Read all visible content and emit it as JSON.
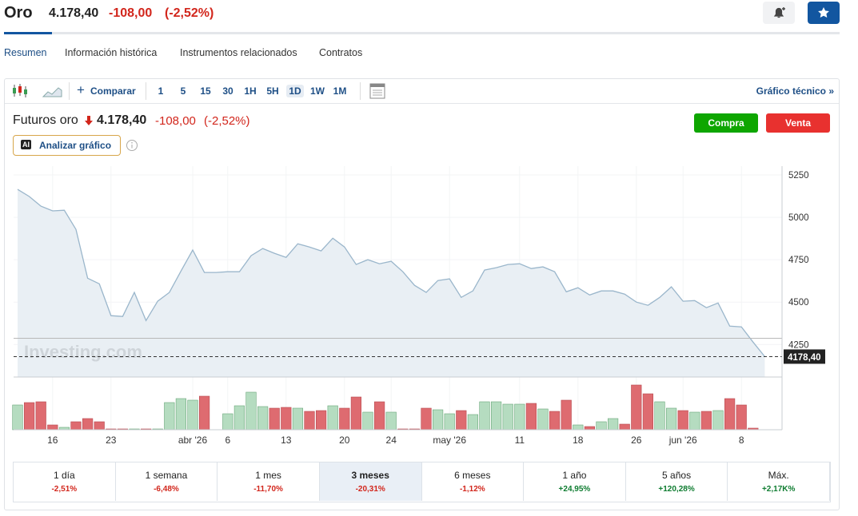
{
  "header": {
    "title": "Oro",
    "price": "4.178,40",
    "change": "-108,00",
    "change_pct": "(-2,52%)"
  },
  "tabs": {
    "items": [
      "Resumen",
      "Información histórica",
      "Instrumentos relacionados",
      "Contratos"
    ],
    "selected": 0
  },
  "toolbar": {
    "compare": "Comparar",
    "intervals": [
      "1",
      "5",
      "15",
      "30",
      "1H",
      "5H",
      "1D",
      "1W",
      "1M"
    ],
    "selected": 6,
    "technical": "Gráfico técnico »"
  },
  "instrument": {
    "name": "Futuros oro",
    "price": "4.178,40",
    "change": "-108,00",
    "change_pct": "(-2,52%)",
    "ai_badge": "AI",
    "analyze": "Analizar gráfico",
    "buy": "Compra",
    "sell": "Venta"
  },
  "chart_data": {
    "type": "area",
    "watermark": "Investing.com",
    "color": "#9ab6cb",
    "fill": "#e9eff4",
    "categories": [
      null,
      null,
      null,
      "16",
      null,
      null,
      null,
      null,
      "23",
      null,
      null,
      null,
      null,
      null,
      null,
      "abr '26",
      null,
      null,
      "6",
      null,
      null,
      null,
      null,
      "13",
      null,
      null,
      null,
      null,
      "20",
      null,
      null,
      null,
      "24",
      null,
      null,
      null,
      null,
      "may '26",
      null,
      null,
      null,
      null,
      null,
      "11",
      null,
      null,
      null,
      null,
      "18",
      null,
      null,
      null,
      null,
      "26",
      null,
      null,
      null,
      "jun '26",
      null,
      null,
      null,
      null,
      "8",
      null,
      null
    ],
    "values": [
      5165,
      5123,
      5066,
      5038,
      5042,
      4929,
      4641,
      4608,
      4420,
      4415,
      4557,
      4391,
      4505,
      4557,
      4684,
      4807,
      4675,
      4675,
      4679,
      4679,
      4774,
      4816,
      4788,
      4764,
      4844,
      4825,
      4802,
      4877,
      4825,
      4722,
      4750,
      4726,
      4741,
      4679,
      4599,
      4557,
      4627,
      4637,
      4528,
      4566,
      4689,
      4703,
      4722,
      4726,
      4698,
      4708,
      4679,
      4561,
      4585,
      4542,
      4566,
      4566,
      4547,
      4500,
      4481,
      4528,
      4590,
      4505,
      4509,
      4467,
      4495,
      4358,
      4354,
      4264,
      4178.4
    ],
    "ylim": [
      4058,
      5302
    ],
    "yticks": [
      4250,
      4500,
      4750,
      5000,
      5250
    ],
    "reference_line": 4286.4,
    "current": {
      "value": 4178.4,
      "label": "4178,40"
    },
    "volume": {
      "up_color": "#b5dcc0",
      "down_color": "#de6b70",
      "values": [
        31,
        34,
        35,
        6,
        3,
        10,
        14,
        10,
        1,
        1,
        1,
        1,
        1,
        34,
        39,
        37,
        42,
        0,
        20,
        30,
        47,
        29,
        27,
        28,
        27,
        23,
        24,
        30,
        27,
        41,
        22,
        35,
        22,
        1,
        1,
        27,
        25,
        20,
        24,
        19,
        35,
        35,
        32,
        32,
        33,
        26,
        23,
        37,
        6,
        4,
        10,
        14,
        7,
        56,
        45,
        35,
        27,
        24,
        22,
        23,
        24,
        39,
        31,
        2,
        0
      ]
    }
  },
  "performance": {
    "selected": 3,
    "items": [
      {
        "period": "1 día",
        "change": "-2,51%"
      },
      {
        "period": "1 semana",
        "change": "-6,48%"
      },
      {
        "period": "1 mes",
        "change": "-11,70%"
      },
      {
        "period": "3 meses",
        "change": "-20,31%"
      },
      {
        "period": "6 meses",
        "change": "-1,12%"
      },
      {
        "period": "1 año",
        "change": "+24,95%"
      },
      {
        "period": "5 años",
        "change": "+120,28%"
      },
      {
        "period": "Máx.",
        "change": "+2,17K%"
      }
    ]
  }
}
